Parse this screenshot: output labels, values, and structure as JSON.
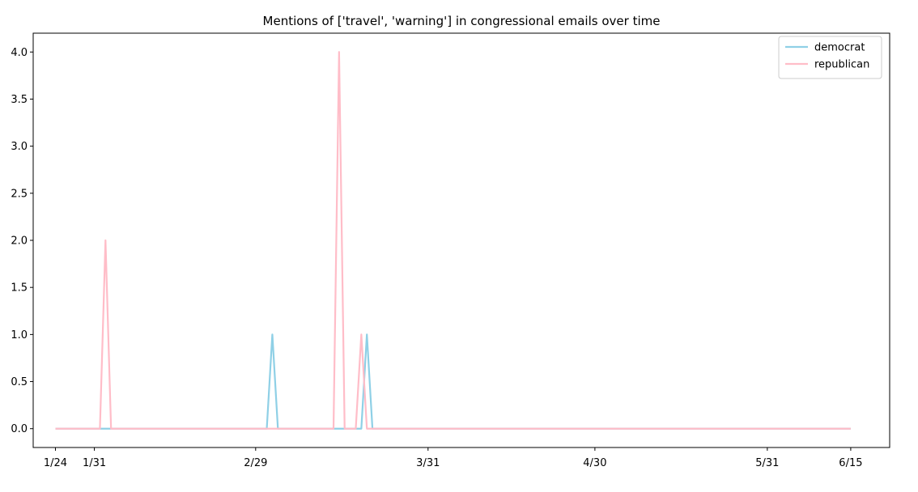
{
  "chart_data": {
    "type": "line",
    "title": "Mentions of ['travel', 'warning'] in congressional emails over time",
    "xlabel": "",
    "ylabel": "",
    "x_ticks": [
      "1/24",
      "1/31",
      "2/29",
      "3/31",
      "4/30",
      "5/31",
      "6/15"
    ],
    "x_tick_days": [
      0,
      7,
      36,
      67,
      97,
      128,
      143
    ],
    "y_ticks": [
      "0.0",
      "0.5",
      "1.0",
      "1.5",
      "2.0",
      "2.5",
      "3.0",
      "3.5",
      "4.0"
    ],
    "ylim": [
      -0.2,
      4.2
    ],
    "xlim_days": [
      -4,
      150
    ],
    "grid": false,
    "legend_position": "top-right",
    "series": [
      {
        "name": "democrat",
        "color": "#8fd0e6",
        "points": [
          [
            0,
            0
          ],
          [
            8,
            0
          ],
          [
            38,
            0
          ],
          [
            39,
            1
          ],
          [
            40,
            0
          ],
          [
            55,
            0
          ],
          [
            56,
            1
          ],
          [
            57,
            0
          ],
          [
            143,
            0
          ]
        ]
      },
      {
        "name": "republican",
        "color": "#ffbdc8",
        "points": [
          [
            0,
            0
          ],
          [
            8,
            0
          ],
          [
            9,
            2
          ],
          [
            10,
            0
          ],
          [
            50,
            0
          ],
          [
            51,
            4
          ],
          [
            52,
            0
          ],
          [
            54,
            0
          ],
          [
            55,
            1
          ],
          [
            56,
            0
          ],
          [
            143,
            0
          ]
        ]
      }
    ]
  }
}
